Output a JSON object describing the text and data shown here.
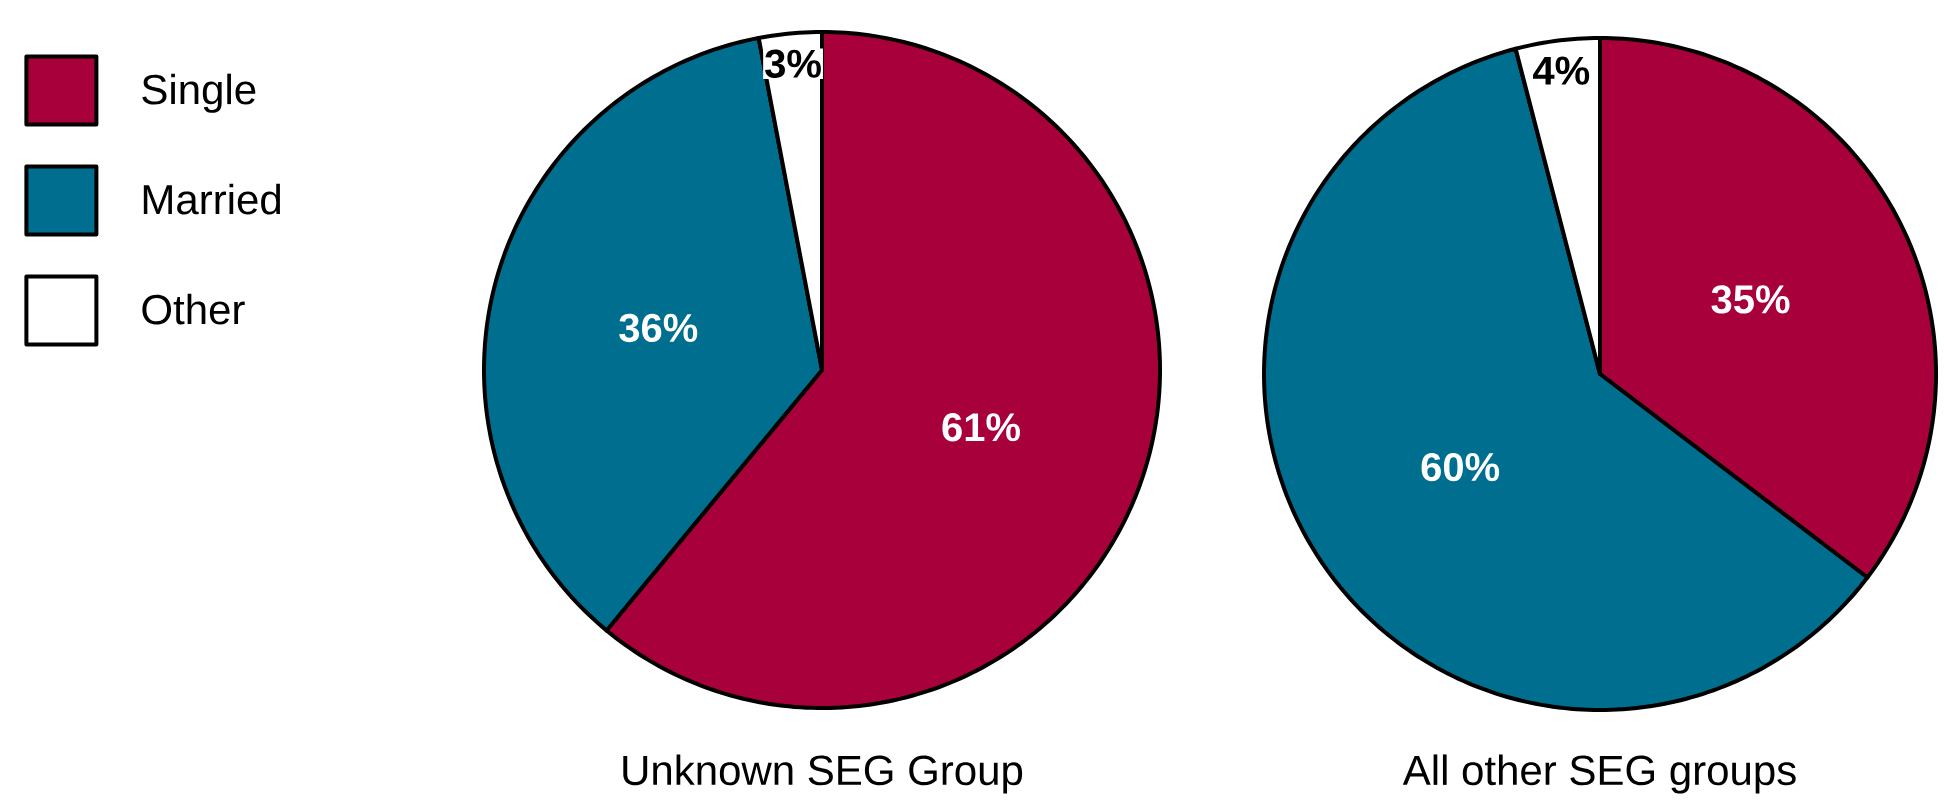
{
  "chart_data": {
    "type": "pie",
    "categories": [
      "Single",
      "Married",
      "Other"
    ],
    "colors": [
      "#a8003b",
      "#006e8e",
      "#ffffff"
    ],
    "legend": "left",
    "series": [
      {
        "name": "Unknown SEG Group",
        "values": [
          61,
          36,
          3
        ],
        "value_labels": [
          "61%",
          "36%",
          "3%"
        ]
      },
      {
        "name": "All other SEG groups",
        "values": [
          35,
          60,
          4
        ],
        "value_labels": [
          "35%",
          "60%",
          "4%"
        ]
      }
    ]
  }
}
